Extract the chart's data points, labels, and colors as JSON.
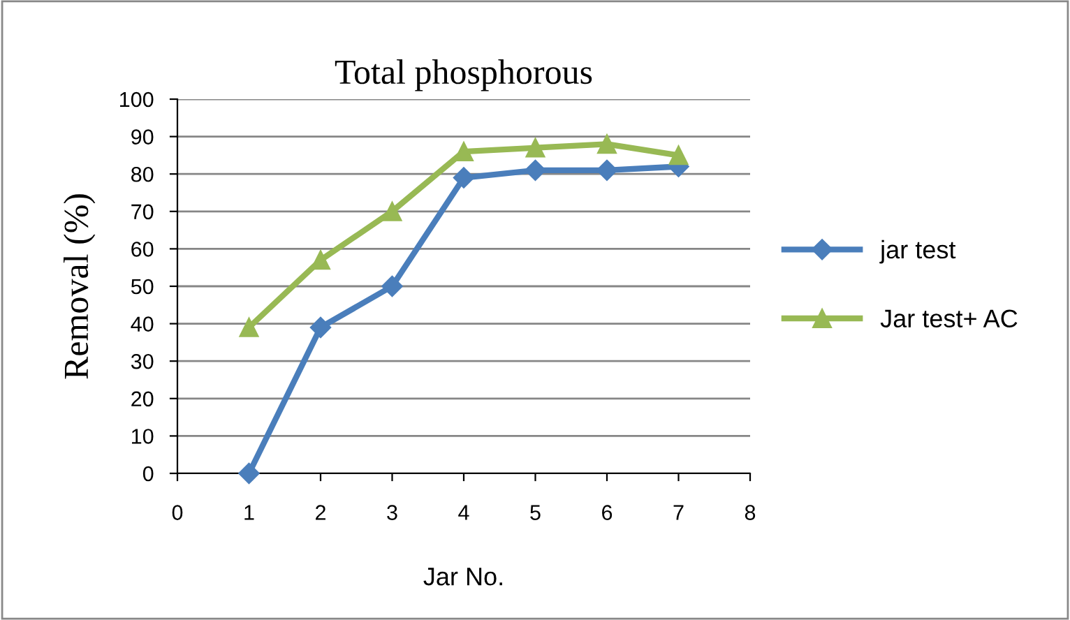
{
  "chart_data": {
    "type": "line",
    "title": "Total phosphorous",
    "xlabel": "Jar No.",
    "ylabel": "Removal (%)",
    "x": [
      1,
      2,
      3,
      4,
      5,
      6,
      7
    ],
    "series": [
      {
        "name": "jar test",
        "color": "#4a7ebb",
        "values": [
          0,
          39,
          50,
          79,
          81,
          81,
          82
        ],
        "marker": "diamond"
      },
      {
        "name": "Jar test+ AC",
        "color": "#98b954",
        "values": [
          39,
          57,
          70,
          86,
          87,
          88,
          85
        ],
        "marker": "triangle"
      }
    ],
    "xlim": [
      0,
      8
    ],
    "xticks": [
      0,
      1,
      2,
      3,
      4,
      5,
      6,
      7,
      8
    ],
    "ylim": [
      0,
      100
    ],
    "yticks": [
      0,
      10,
      20,
      30,
      40,
      50,
      60,
      70,
      80,
      90,
      100
    ],
    "grid": "y",
    "legend": "right",
    "line_style": "solid"
  }
}
